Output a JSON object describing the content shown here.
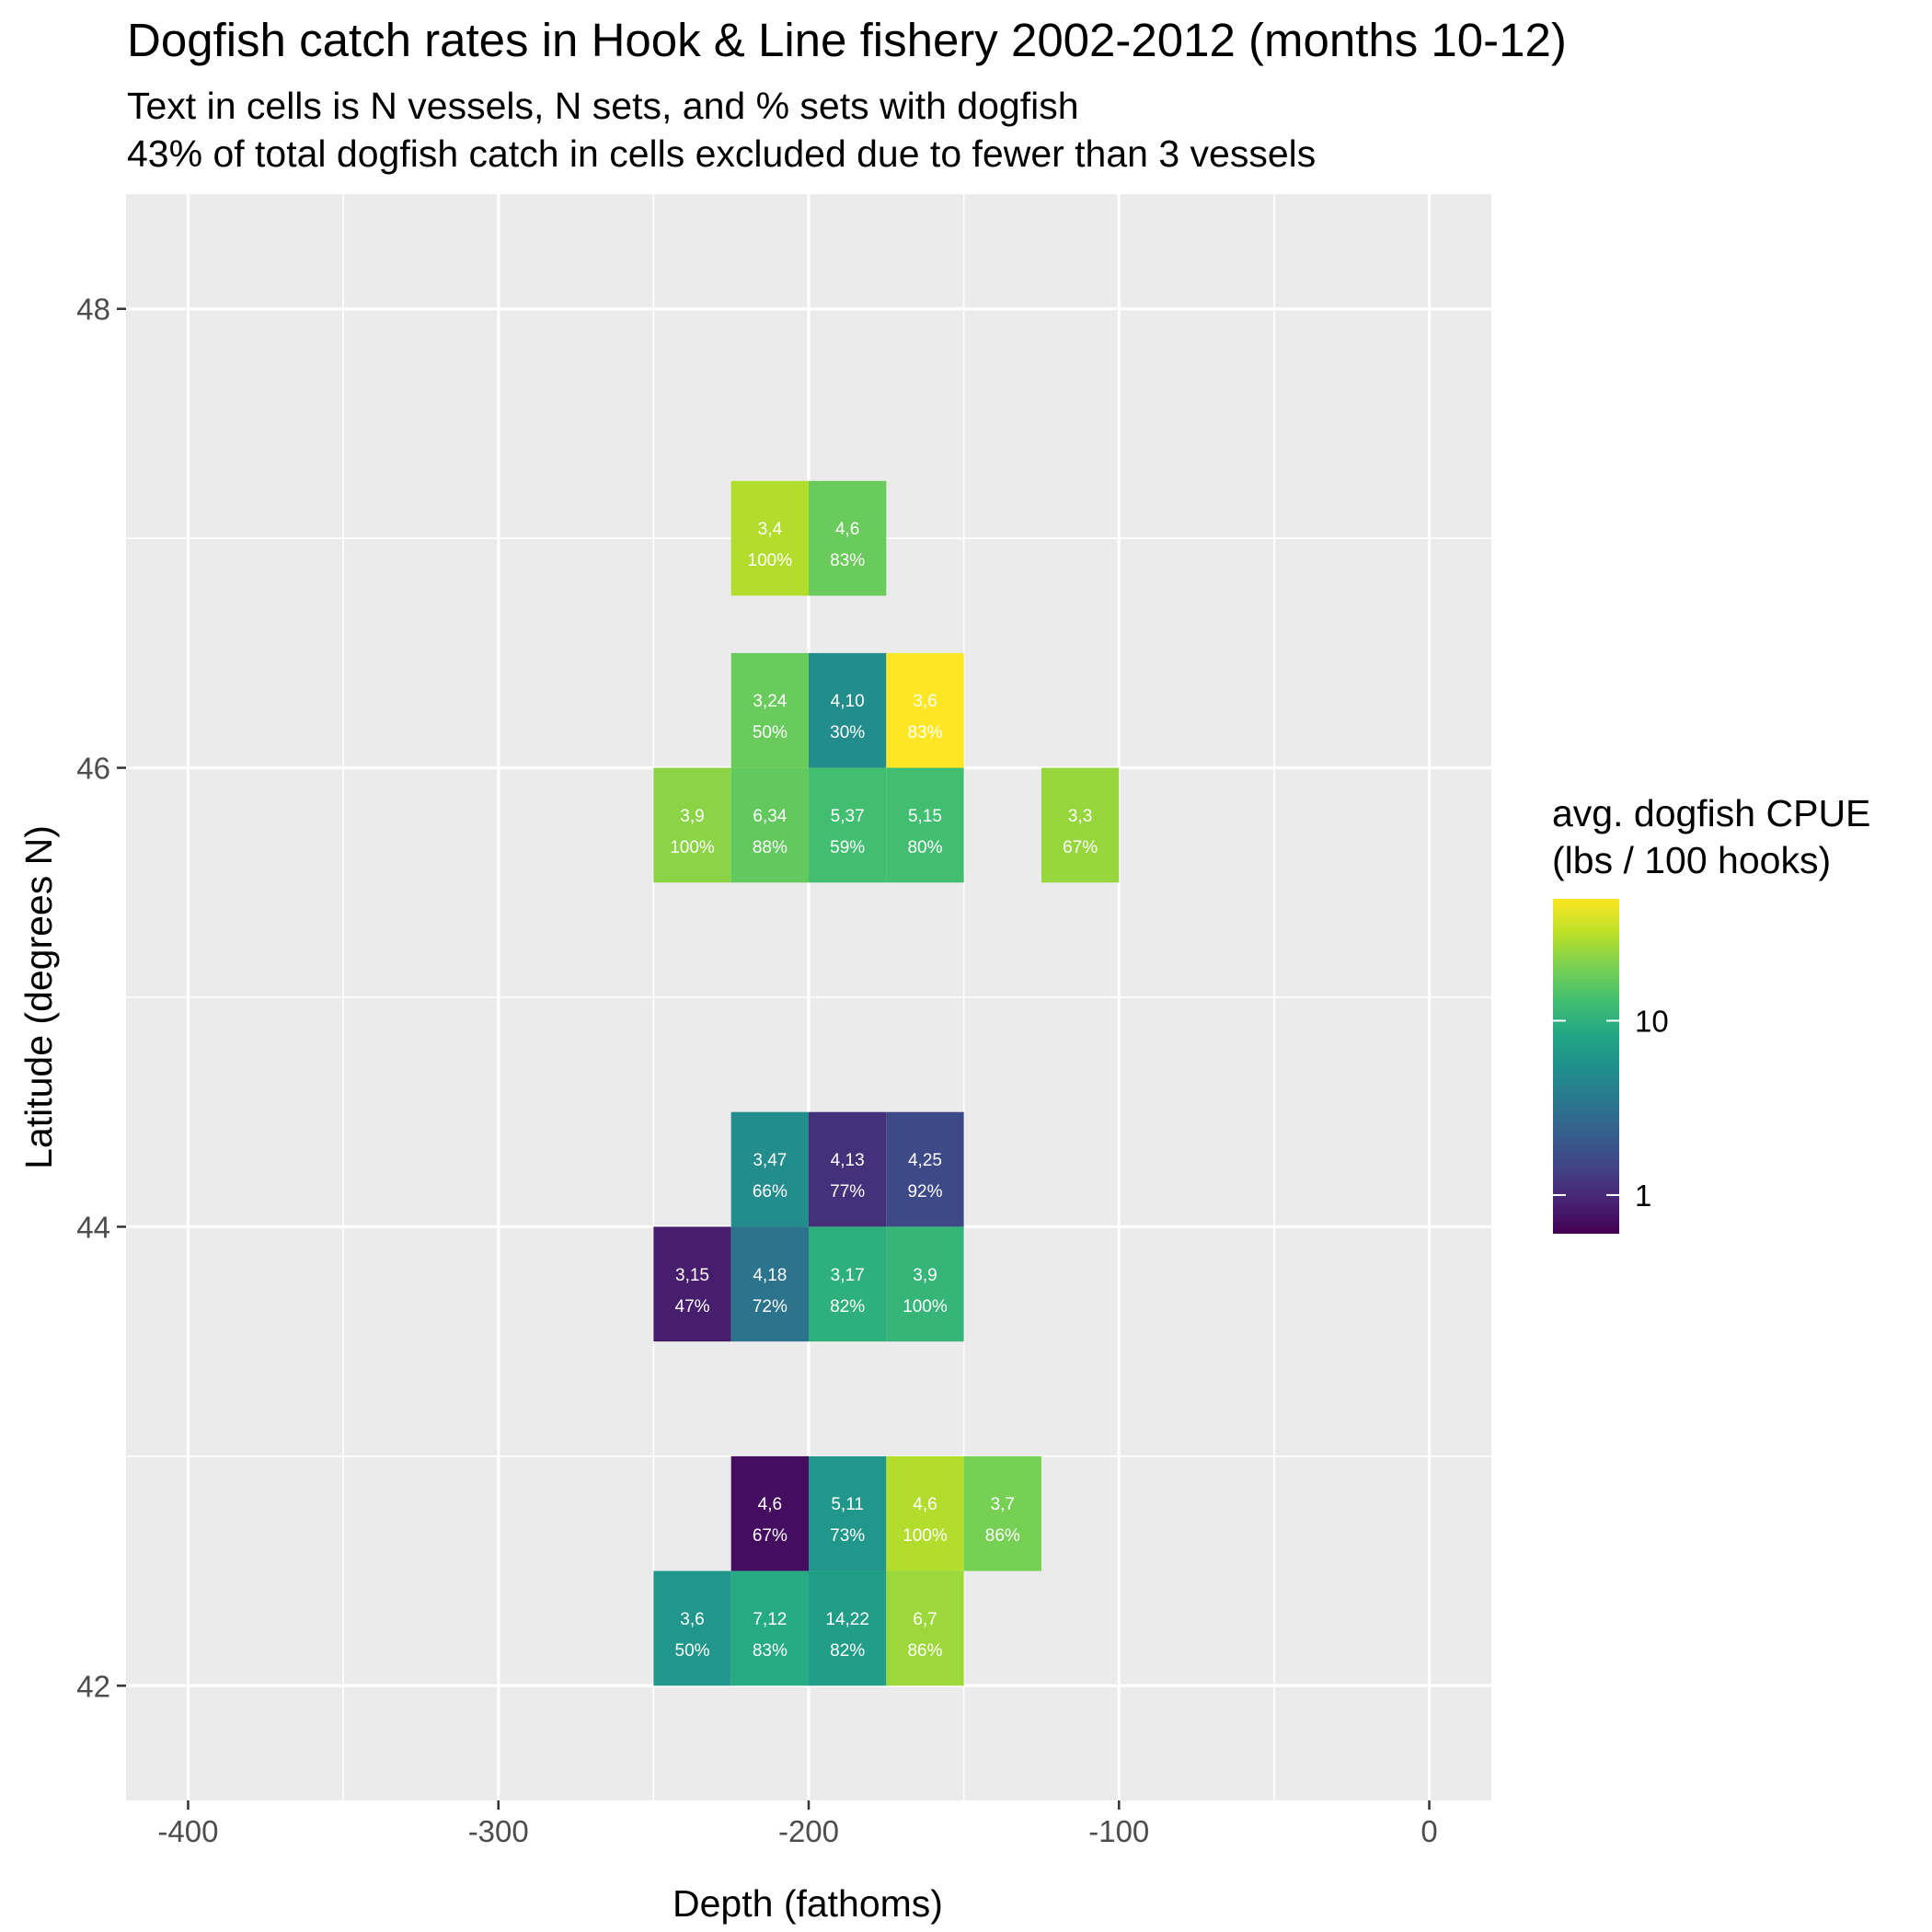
{
  "chart_data": {
    "type": "heatmap",
    "title": "Dogfish catch rates in Hook & Line fishery 2002-2012 (months 10-12)",
    "subtitle": [
      "Text in cells is N vessels, N sets, and % sets with dogfish",
      "43% of total dogfish catch in cells excluded due to fewer than 3 vessels"
    ],
    "xlabel": "Depth (fathoms)",
    "ylabel": "Latitude (degrees N)",
    "xlim": [
      -420,
      20
    ],
    "ylim": [
      41.5,
      48.5
    ],
    "xticks": [
      -400,
      -300,
      -200,
      -100,
      0
    ],
    "yticks": [
      42,
      44,
      46,
      48
    ],
    "grid": true,
    "legend": {
      "position": "right",
      "title": [
        "avg. dogfish CPUE",
        "(lbs / 100 hooks)"
      ],
      "scale": "log10",
      "range": [
        0.6,
        50
      ],
      "ticks": [
        1,
        10
      ],
      "tick_labels": [
        "1",
        "10"
      ],
      "colormap": "viridis"
    },
    "cells": [
      {
        "depth": -212.5,
        "lat": 47.0,
        "label": [
          "3,4",
          "100%"
        ],
        "cpue": 30
      },
      {
        "depth": -187.5,
        "lat": 47.0,
        "label": [
          "4,6",
          "83%"
        ],
        "cpue": 18
      },
      {
        "depth": -212.5,
        "lat": 46.25,
        "label": [
          "3,24",
          "50%"
        ],
        "cpue": 18
      },
      {
        "depth": -187.5,
        "lat": 46.25,
        "label": [
          "4,10",
          "30%"
        ],
        "cpue": 5
      },
      {
        "depth": -162.5,
        "lat": 46.25,
        "label": [
          "3,6",
          "83%"
        ],
        "cpue": 50
      },
      {
        "depth": -237.5,
        "lat": 45.75,
        "label": [
          "3,9",
          "100%"
        ],
        "cpue": 23
      },
      {
        "depth": -212.5,
        "lat": 45.75,
        "label": [
          "6,34",
          "88%"
        ],
        "cpue": 17
      },
      {
        "depth": -187.5,
        "lat": 45.75,
        "label": [
          "5,37",
          "59%"
        ],
        "cpue": 13
      },
      {
        "depth": -162.5,
        "lat": 45.75,
        "label": [
          "5,15",
          "80%"
        ],
        "cpue": 13
      },
      {
        "depth": -112.5,
        "lat": 45.75,
        "label": [
          "3,3",
          "67%"
        ],
        "cpue": 25
      },
      {
        "depth": -212.5,
        "lat": 44.25,
        "label": [
          "3,47",
          "66%"
        ],
        "cpue": 5
      },
      {
        "depth": -187.5,
        "lat": 44.25,
        "label": [
          "4,13",
          "77%"
        ],
        "cpue": 1.1
      },
      {
        "depth": -162.5,
        "lat": 44.25,
        "label": [
          "4,25",
          "92%"
        ],
        "cpue": 1.6
      },
      {
        "depth": -237.5,
        "lat": 43.75,
        "label": [
          "3,15",
          "47%"
        ],
        "cpue": 0.85
      },
      {
        "depth": -212.5,
        "lat": 43.75,
        "label": [
          "4,18",
          "72%"
        ],
        "cpue": 3.2
      },
      {
        "depth": -187.5,
        "lat": 43.75,
        "label": [
          "3,17",
          "82%"
        ],
        "cpue": 10
      },
      {
        "depth": -162.5,
        "lat": 43.75,
        "label": [
          "3,9",
          "100%"
        ],
        "cpue": 11
      },
      {
        "depth": -212.5,
        "lat": 42.75,
        "label": [
          "4,6",
          "67%"
        ],
        "cpue": 0.7
      },
      {
        "depth": -187.5,
        "lat": 42.75,
        "label": [
          "5,11",
          "73%"
        ],
        "cpue": 6
      },
      {
        "depth": -162.5,
        "lat": 42.75,
        "label": [
          "4,6",
          "100%"
        ],
        "cpue": 30
      },
      {
        "depth": -137.5,
        "lat": 42.75,
        "label": [
          "3,7",
          "86%"
        ],
        "cpue": 20
      },
      {
        "depth": -237.5,
        "lat": 42.25,
        "label": [
          "3,6",
          "50%"
        ],
        "cpue": 6
      },
      {
        "depth": -212.5,
        "lat": 42.25,
        "label": [
          "7,12",
          "83%"
        ],
        "cpue": 9
      },
      {
        "depth": -187.5,
        "lat": 42.25,
        "label": [
          "14,22",
          "82%"
        ],
        "cpue": 7
      },
      {
        "depth": -162.5,
        "lat": 42.25,
        "label": [
          "6,7",
          "86%"
        ],
        "cpue": 26
      }
    ]
  }
}
